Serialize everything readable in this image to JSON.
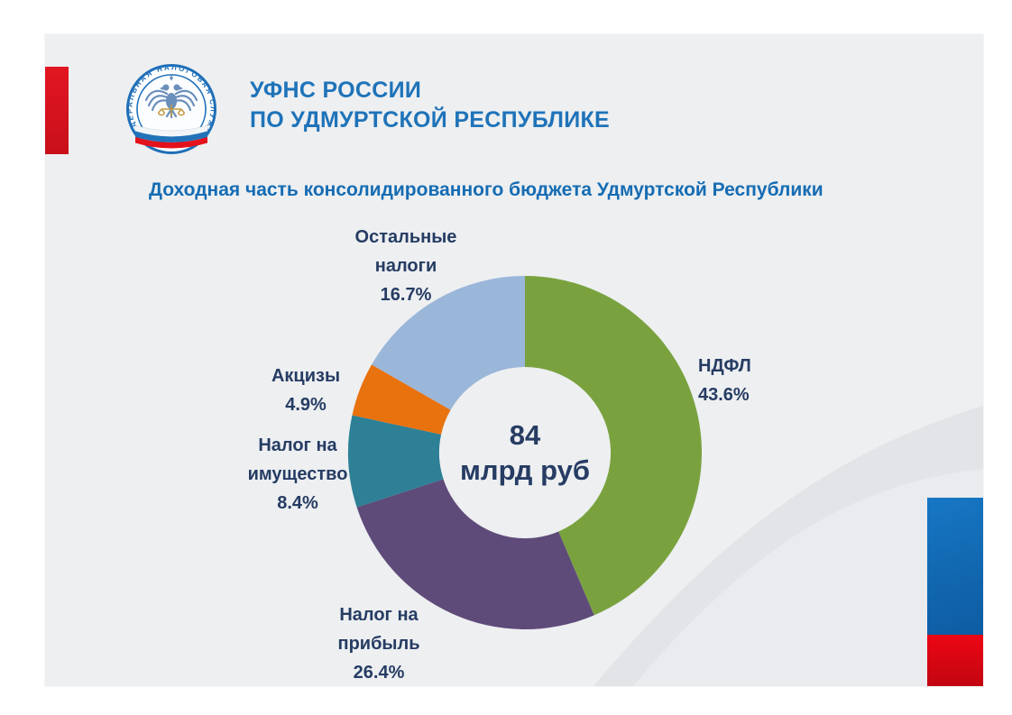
{
  "header": {
    "org_line1": "УФНС РОССИИ",
    "org_line2": "ПО УДМУРТСКОЙ РЕСПУБЛИКЕ",
    "logo_ring_text": "ФЕДЕРАЛЬНАЯ НАЛОГОВАЯ СЛУЖБА"
  },
  "chart_data": {
    "type": "pie",
    "subtype": "donut",
    "title": "Доходная часть консолидированного бюджета Удмуртской Республики",
    "center_value": "84",
    "center_unit": "млрд руб",
    "start_angle_deg": 0,
    "direction": "clockwise",
    "donut_hole_ratio": 0.485,
    "legend_position": "none",
    "segments": [
      {
        "slug": "ndfl",
        "label": "НДФЛ",
        "label_lines": [
          "НДФЛ"
        ],
        "value": 43.6,
        "pct_label": "43.6%",
        "color": "#79a23f"
      },
      {
        "slug": "nalog-na-pribyl",
        "label": "Налог на прибыль",
        "label_lines": [
          "Налог на",
          "прибыль"
        ],
        "value": 26.4,
        "pct_label": "26.4%",
        "color": "#5f4b79"
      },
      {
        "slug": "nalog-na-imushchestvo",
        "label": "Налог на имущество",
        "label_lines": [
          "Налог на",
          "имущество"
        ],
        "value": 8.4,
        "pct_label": "8.4%",
        "color": "#2d8096"
      },
      {
        "slug": "aktsizy",
        "label": "Акцизы",
        "label_lines": [
          "Акцизы"
        ],
        "value": 4.9,
        "pct_label": "4.9%",
        "color": "#e8720e"
      },
      {
        "slug": "ostalnye-nalogi",
        "label": "Остальные налоги",
        "label_lines": [
          "Остальные",
          "налоги"
        ],
        "value": 16.7,
        "pct_label": "16.7%",
        "color": "#9ab6d9"
      }
    ]
  },
  "accents": {
    "slide_bg": "#edeff1",
    "left_bar_red": "#d2141e",
    "right_bar_blue": "#1470bd",
    "right_bar_red": "#e30613",
    "header_blue": "#1e73b9",
    "title_blue": "#166cb3",
    "label_navy": "#263c63",
    "swoosh_gray": "#e2e4e7"
  }
}
